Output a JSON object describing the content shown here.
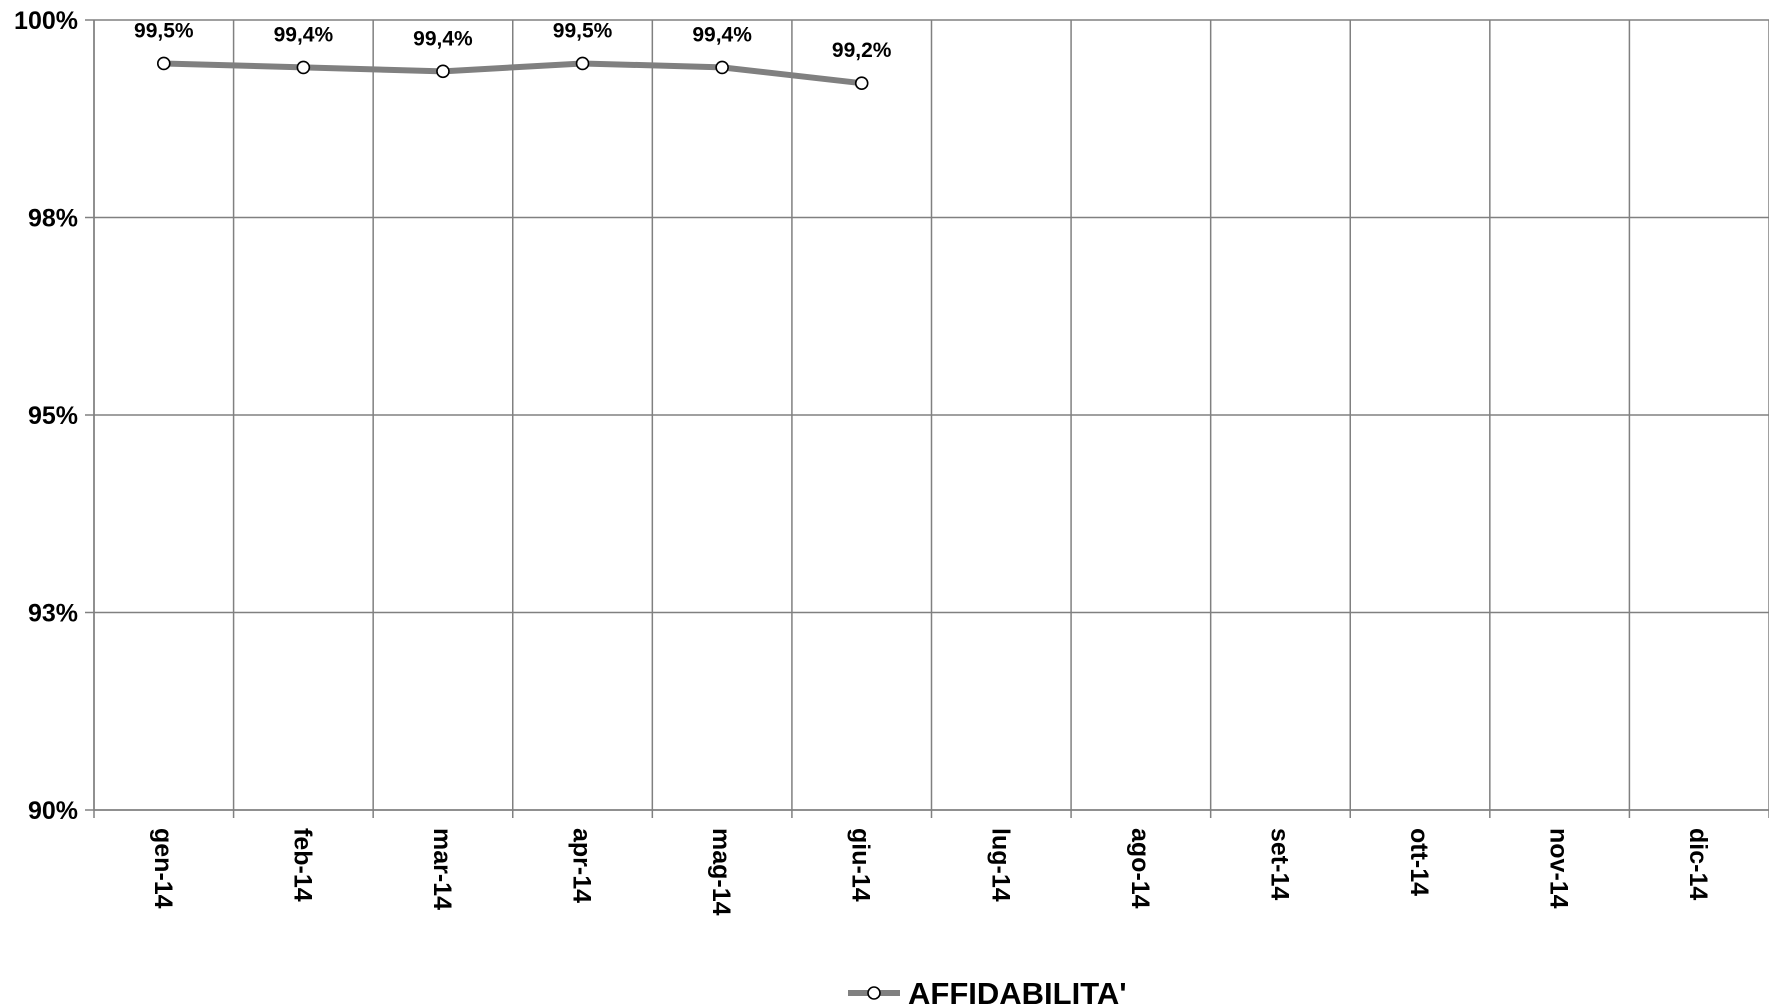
{
  "chart_data": {
    "type": "line",
    "title": "",
    "xlabel": "",
    "ylabel": "",
    "categories": [
      "gen-14",
      "feb-14",
      "mar-14",
      "apr-14",
      "mag-14",
      "giu-14",
      "lug-14",
      "ago-14",
      "set-14",
      "ott-14",
      "nov-14",
      "dic-14"
    ],
    "y_ticks": [
      {
        "value": 90,
        "label": "90%"
      },
      {
        "value": 92.5,
        "label": "93%"
      },
      {
        "value": 95,
        "label": "95%"
      },
      {
        "value": 97.5,
        "label": "98%"
      },
      {
        "value": 100,
        "label": "100%"
      }
    ],
    "ylim": [
      90,
      100
    ],
    "grid": true,
    "legend_position": "bottom-center",
    "series": [
      {
        "name": "AFFIDABILITA'",
        "color": "#808080",
        "marker": "open-circle",
        "values": [
          99.45,
          99.4,
          99.35,
          99.45,
          99.4,
          99.2,
          null,
          null,
          null,
          null,
          null,
          null
        ],
        "labels": [
          "99,5%",
          "99,4%",
          "99,4%",
          "99,5%",
          "99,4%",
          "99,2%",
          "",
          "",
          "",
          "",
          "",
          ""
        ]
      }
    ],
    "colors": {
      "gridline": "#808080",
      "axis": "#808080",
      "text": "#000000"
    }
  }
}
